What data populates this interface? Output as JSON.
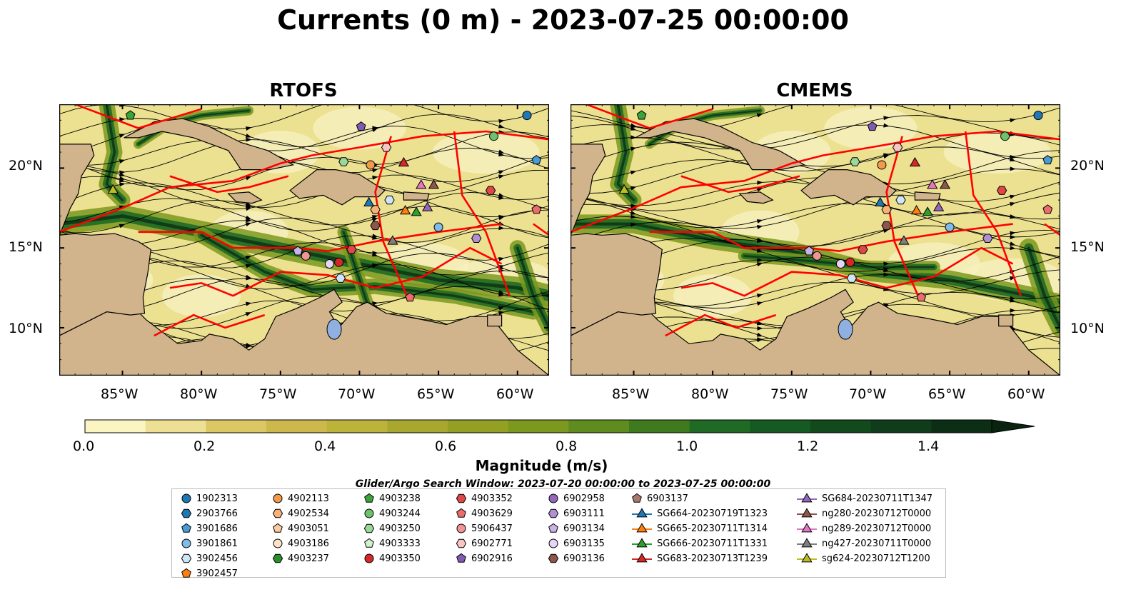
{
  "title": "Currents (0 m) - 2023-07-25 00:00:00",
  "panels": [
    {
      "title": "RTOFS"
    },
    {
      "title": "CMEMS"
    }
  ],
  "x_ticks": [
    "85°W",
    "80°W",
    "75°W",
    "70°W",
    "65°W",
    "60°W"
  ],
  "y_ticks": [
    "20°N",
    "15°N",
    "10°N"
  ],
  "colorbar": {
    "label": "Magnitude (m/s)",
    "ticks": [
      "0.0",
      "0.2",
      "0.4",
      "0.6",
      "0.8",
      "1.0",
      "1.2",
      "1.4"
    ],
    "colors": [
      "#fbf5c2",
      "#ede094",
      "#dcc765",
      "#cdb84c",
      "#bcb33a",
      "#a8a82e",
      "#93a024",
      "#7d981e",
      "#5f8b1f",
      "#3f7a1f",
      "#1f6a24",
      "#155a22",
      "#124a1e",
      "#0f3c1a",
      "#0c2e14",
      "#0a2311"
    ],
    "extend": "max"
  },
  "legend": {
    "title": "Glider/Argo Search Window: 2023-07-20 00:00:00 to 2023-07-25 00:00:00",
    "entries": [
      {
        "label": "1902313",
        "marker": "circle",
        "color": "#1f77b4"
      },
      {
        "label": "2903766",
        "marker": "hexagon",
        "color": "#1f77b4"
      },
      {
        "label": "3901686",
        "marker": "pentagon",
        "color": "#4a9bd4"
      },
      {
        "label": "3901861",
        "marker": "circle",
        "color": "#7fbce8"
      },
      {
        "label": "3902456",
        "marker": "hexagon",
        "color": "#cfe6f6"
      },
      {
        "label": "3902457",
        "marker": "pentagon",
        "color": "#ff7f0e"
      },
      {
        "label": "4902113",
        "marker": "circle",
        "color": "#f39a4a"
      },
      {
        "label": "4902534",
        "marker": "hexagon",
        "color": "#f7b27a"
      },
      {
        "label": "4903051",
        "marker": "pentagon",
        "color": "#fbcc9f"
      },
      {
        "label": "4903186",
        "marker": "circle",
        "color": "#fde3c6"
      },
      {
        "label": "4903237",
        "marker": "hexagon",
        "color": "#2a8f2a"
      },
      {
        "label": "4903238",
        "marker": "pentagon",
        "color": "#3aa33a"
      },
      {
        "label": "4903244",
        "marker": "circle",
        "color": "#6cc36c"
      },
      {
        "label": "4903250",
        "marker": "hexagon",
        "color": "#9ad89a"
      },
      {
        "label": "4903333",
        "marker": "pentagon",
        "color": "#d2f1cf"
      },
      {
        "label": "4903350",
        "marker": "circle",
        "color": "#d62728"
      },
      {
        "label": "4903352",
        "marker": "hexagon",
        "color": "#e04848"
      },
      {
        "label": "4903629",
        "marker": "pentagon",
        "color": "#ea6c6c"
      },
      {
        "label": "5906437",
        "marker": "circle",
        "color": "#f29494"
      },
      {
        "label": "6902771",
        "marker": "hexagon",
        "color": "#f8c4c4"
      },
      {
        "label": "6902916",
        "marker": "pentagon",
        "color": "#7f5bb4"
      },
      {
        "label": "6902958",
        "marker": "circle",
        "color": "#9467bd"
      },
      {
        "label": "6903111",
        "marker": "hexagon",
        "color": "#b08fd4"
      },
      {
        "label": "6903134",
        "marker": "pentagon",
        "color": "#c9b3e6"
      },
      {
        "label": "6903135",
        "marker": "circle",
        "color": "#e4d6f4"
      },
      {
        "label": "6903136",
        "marker": "hexagon",
        "color": "#8c564b"
      },
      {
        "label": "6903137",
        "marker": "pentagon",
        "color": "#a8796e"
      },
      {
        "label": "SG664-20230719T1323",
        "marker": "triangle",
        "color": "#1f77b4"
      },
      {
        "label": "SG665-20230711T1314",
        "marker": "triangle",
        "color": "#ff7f0e"
      },
      {
        "label": "SG666-20230711T1331",
        "marker": "triangle",
        "color": "#2ca02c"
      },
      {
        "label": "SG683-20230713T1239",
        "marker": "triangle",
        "color": "#d62728"
      },
      {
        "label": "SG684-20230711T1347",
        "marker": "triangle",
        "color": "#9467bd"
      },
      {
        "label": "ng280-20230712T0000",
        "marker": "triangle",
        "color": "#8c564b"
      },
      {
        "label": "ng289-20230712T0000",
        "marker": "triangle",
        "color": "#e377c2"
      },
      {
        "label": "ng427-20230711T0000",
        "marker": "triangle",
        "color": "#7f7f7f"
      },
      {
        "label": "sg624-20230712T1200",
        "marker": "triangle",
        "color": "#bcbd22"
      }
    ]
  },
  "colors": {
    "land": "#d2b48c",
    "lake": "#8fb0e0",
    "eez_lines": "#ff0000",
    "streamlines": "#000000"
  },
  "chart_data": {
    "type": "map",
    "xlim": [
      -89,
      -58
    ],
    "ylim": [
      7,
      24
    ],
    "variable": "Magnitude (m/s)",
    "color_range": [
      0,
      1.5
    ],
    "platforms": [
      {
        "id": "1902313",
        "lon": -59.4,
        "lat": 23.3
      },
      {
        "id": "3901686",
        "lon": -58.8,
        "lat": 20.5
      },
      {
        "id": "4903244",
        "lon": -61.5,
        "lat": 22.0
      },
      {
        "id": "6902771",
        "lon": -68.3,
        "lat": 21.3
      },
      {
        "id": "6902916",
        "lon": -69.9,
        "lat": 22.6
      },
      {
        "id": "4903250",
        "lon": -71.0,
        "lat": 20.4
      },
      {
        "id": "4902113",
        "lon": -69.3,
        "lat": 20.2
      },
      {
        "id": "3902456",
        "lon": -68.1,
        "lat": 18.0
      },
      {
        "id": "4902534",
        "lon": -69.0,
        "lat": 17.4
      },
      {
        "id": "3901861",
        "lon": -65.0,
        "lat": 16.3
      },
      {
        "id": "6903136",
        "lon": -69.0,
        "lat": 16.4
      },
      {
        "id": "4903352",
        "lon": -61.7,
        "lat": 18.6
      },
      {
        "id": "4903629",
        "lon": -58.8,
        "lat": 17.4
      },
      {
        "id": "6903111",
        "lon": -62.6,
        "lat": 15.6
      },
      {
        "id": "6903134",
        "lon": -73.9,
        "lat": 14.8
      },
      {
        "id": "5906437",
        "lon": -73.4,
        "lat": 14.5
      },
      {
        "id": "6903135",
        "lon": -71.9,
        "lat": 14.0
      },
      {
        "id": "4903350",
        "lon": -71.3,
        "lat": 14.1
      },
      {
        "id": "3902456",
        "lon": -71.2,
        "lat": 13.1
      },
      {
        "id": "4903352",
        "lon": -70.5,
        "lat": 14.9
      },
      {
        "id": "4903629",
        "lon": -66.8,
        "lat": 11.9
      },
      {
        "id": "4903238",
        "lon": -84.5,
        "lat": 23.3
      },
      {
        "id": "SG664-20230719T1323",
        "lon": -69.4,
        "lat": 17.8
      },
      {
        "id": "SG665-20230711T1314",
        "lon": -67.1,
        "lat": 17.3
      },
      {
        "id": "SG666-20230711T1331",
        "lon": -66.4,
        "lat": 17.2
      },
      {
        "id": "SG683-20230713T1239",
        "lon": -67.2,
        "lat": 20.3
      },
      {
        "id": "SG684-20230711T1347",
        "lon": -65.7,
        "lat": 17.5
      },
      {
        "id": "ng280-20230712T0000",
        "lon": -65.3,
        "lat": 18.9
      },
      {
        "id": "ng289-20230712T0000",
        "lon": -66.1,
        "lat": 18.9
      },
      {
        "id": "ng427-20230711T0000",
        "lon": -67.9,
        "lat": 15.4
      },
      {
        "id": "sg624-20230712T1200",
        "lon": -85.6,
        "lat": 18.6
      }
    ]
  }
}
